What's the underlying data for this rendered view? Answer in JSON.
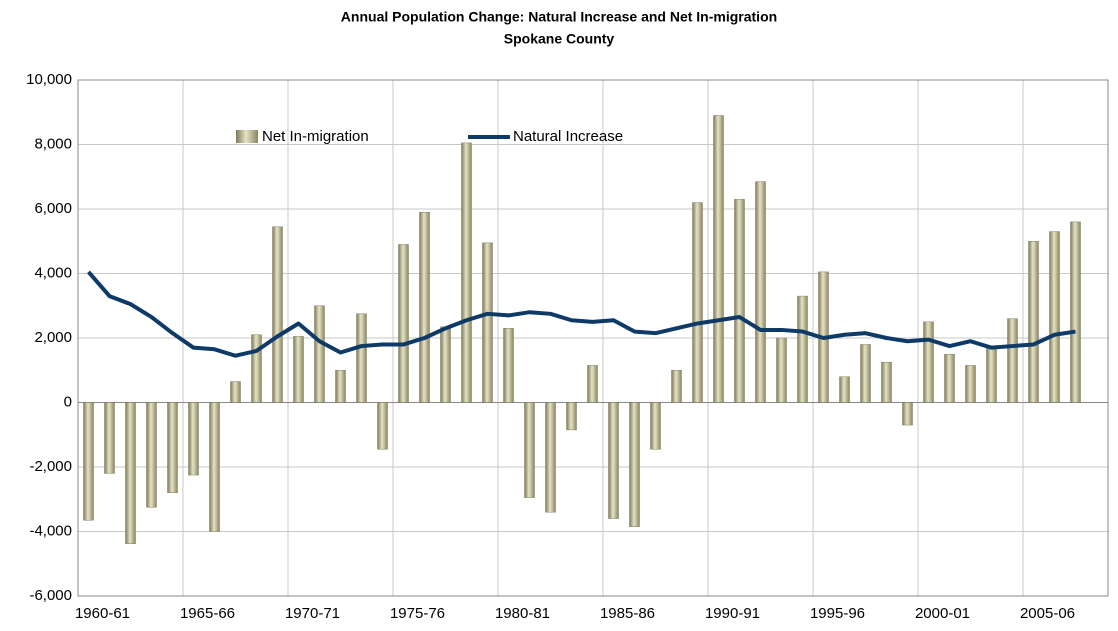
{
  "chart_data": {
    "type": "bar-line",
    "title": "Annual Population Change: Natural Increase and Net In-migration",
    "subtitle": "Spokane County",
    "categories": [
      "1960-61",
      null,
      null,
      null,
      null,
      "1965-66",
      null,
      null,
      null,
      null,
      "1970-71",
      null,
      null,
      null,
      null,
      "1975-76",
      null,
      null,
      null,
      null,
      "1980-81",
      null,
      null,
      null,
      null,
      "1985-86",
      null,
      null,
      null,
      null,
      "1990-91",
      null,
      null,
      null,
      null,
      "1995-96",
      null,
      null,
      null,
      null,
      "2000-01",
      null,
      null,
      null,
      null,
      "2005-06",
      null,
      null
    ],
    "series": [
      {
        "name": "Net In-migration",
        "type": "bar",
        "color": "#b3ae86",
        "values": [
          -3650,
          -2200,
          -4380,
          -3250,
          -2800,
          -2250,
          -4000,
          650,
          2100,
          5450,
          2050,
          3000,
          1000,
          2750,
          -1450,
          4900,
          5900,
          2350,
          8050,
          4950,
          2300,
          -2950,
          -3400,
          -850,
          1150,
          -3600,
          -3850,
          -1450,
          1000,
          6200,
          8900,
          6300,
          6850,
          2000,
          3300,
          4050,
          800,
          1800,
          1250,
          -700,
          2500,
          1500,
          1150,
          1700,
          2600,
          5000,
          5300,
          5600
        ]
      },
      {
        "name": "Natural Increase",
        "type": "line",
        "color": "#0d3a66",
        "values": [
          4050,
          3300,
          3050,
          2650,
          2150,
          1700,
          1650,
          1450,
          1600,
          2050,
          2450,
          1900,
          1550,
          1750,
          1800,
          1800,
          2000,
          2300,
          2550,
          2750,
          2700,
          2800,
          2750,
          2550,
          2500,
          2550,
          2200,
          2150,
          2300,
          2450,
          2550,
          2650,
          2250,
          2250,
          2200,
          2000,
          2100,
          2150,
          2000,
          1900,
          1950,
          1750,
          1900,
          1700,
          1750,
          1800,
          2100,
          2200
        ]
      }
    ],
    "ylim": [
      -6000,
      10000
    ],
    "yticks": [
      {
        "value": -6000,
        "label": "-6,000"
      },
      {
        "value": -4000,
        "label": "-4,000"
      },
      {
        "value": -2000,
        "label": "-2,000"
      },
      0,
      {
        "value": 2000,
        "label": "2,000"
      },
      {
        "value": 4000,
        "label": "4,000"
      },
      {
        "value": 6000,
        "label": "6,000"
      },
      {
        "value": 8000,
        "label": "8,000"
      },
      {
        "value": 10000,
        "label": "10,000"
      }
    ],
    "grid": true,
    "legend": "top"
  }
}
